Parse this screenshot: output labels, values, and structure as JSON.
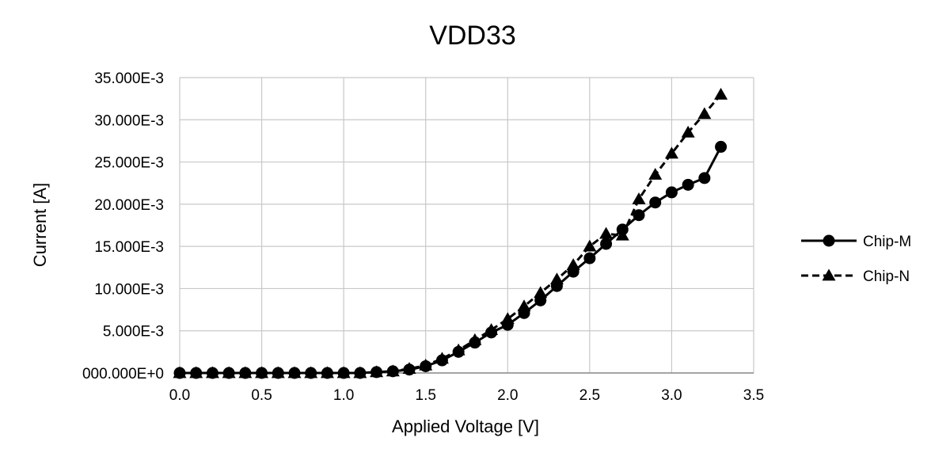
{
  "chart_data": {
    "type": "line",
    "title": "VDD33",
    "xlabel": "Applied Voltage [V]",
    "ylabel": "Current [A]",
    "xlim": [
      0.0,
      3.5
    ],
    "ylim": [
      0.0,
      0.035
    ],
    "x_ticks": [
      0.0,
      0.5,
      1.0,
      1.5,
      2.0,
      2.5,
      3.0,
      3.5
    ],
    "x_tick_labels": [
      "0.0",
      "0.5",
      "1.0",
      "1.5",
      "2.0",
      "2.5",
      "3.0",
      "3.5"
    ],
    "y_ticks": [
      0.0,
      0.005,
      0.01,
      0.015,
      0.02,
      0.025,
      0.03,
      0.035
    ],
    "y_tick_labels": [
      "000.000E+0",
      "5.000E-3",
      "10.000E-3",
      "15.000E-3",
      "20.000E-3",
      "25.000E-3",
      "30.000E-3",
      "35.000E-3"
    ],
    "grid": true,
    "legend_position": "right",
    "x": [
      0.0,
      0.1,
      0.2,
      0.3,
      0.4,
      0.5,
      0.6,
      0.7,
      0.8,
      0.9,
      1.0,
      1.1,
      1.2,
      1.3,
      1.4,
      1.5,
      1.6,
      1.7,
      1.8,
      1.9,
      2.0,
      2.1,
      2.2,
      2.3,
      2.4,
      2.5,
      2.6,
      2.7,
      2.8,
      2.9,
      3.0,
      3.1,
      3.2,
      3.3
    ],
    "series": [
      {
        "name": "Chip-M",
        "line_style": "solid",
        "marker": "circle",
        "color": "#000000",
        "values": [
          0.0,
          0.0,
          0.0,
          0.0,
          0.0,
          0.0,
          0.0,
          0.0,
          0.0,
          0.0,
          0.0,
          0.0,
          0.0001,
          0.0002,
          0.0004,
          0.0008,
          0.0015,
          0.0025,
          0.0036,
          0.0048,
          0.0057,
          0.0071,
          0.0086,
          0.0103,
          0.012,
          0.0136,
          0.0153,
          0.017,
          0.0187,
          0.0202,
          0.0214,
          0.0223,
          0.0231,
          0.0268
        ]
      },
      {
        "name": "Chip-N",
        "line_style": "dashed",
        "marker": "triangle",
        "color": "#000000",
        "values": [
          0.0,
          0.0,
          0.0,
          0.0,
          0.0,
          0.0,
          0.0,
          0.0,
          0.0,
          0.0,
          0.0,
          0.0,
          0.0001,
          0.0002,
          0.0005,
          0.0009,
          0.0017,
          0.0027,
          0.0039,
          0.0051,
          0.0064,
          0.0079,
          0.0095,
          0.0111,
          0.0128,
          0.015,
          0.0165,
          0.0163,
          0.0206,
          0.0235,
          0.026,
          0.0285,
          0.0307,
          0.033
        ]
      }
    ]
  }
}
